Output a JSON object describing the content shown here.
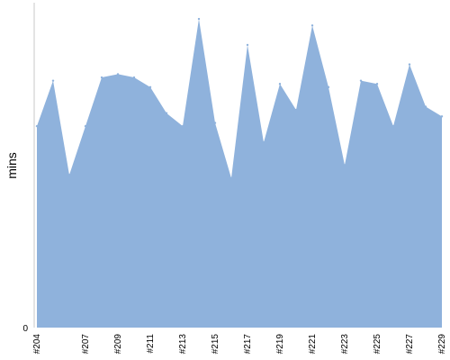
{
  "chart_data": {
    "type": "area",
    "title": "",
    "xlabel": "",
    "ylabel": "mins",
    "y_ticks": [
      "0"
    ],
    "ylim": [
      0,
      100
    ],
    "grid": false,
    "fill_color": "#8fb2dc",
    "axis_color": "#c8c8c8",
    "x_labels_shown": [
      "#204",
      "#207",
      "#209",
      "#211",
      "#213",
      "#215",
      "#217",
      "#219",
      "#221",
      "#223",
      "#225",
      "#227",
      "#229"
    ],
    "points": [
      {
        "x": "#204",
        "y": 62
      },
      {
        "x": "#205",
        "y": 76
      },
      {
        "x": "#206",
        "y": 47
      },
      {
        "x": "#207",
        "y": 62
      },
      {
        "x": "#208",
        "y": 77
      },
      {
        "x": "#209",
        "y": 78
      },
      {
        "x": "#210",
        "y": 77
      },
      {
        "x": "#211",
        "y": 74
      },
      {
        "x": "#212",
        "y": 66
      },
      {
        "x": "#213",
        "y": 62
      },
      {
        "x": "#214",
        "y": 95
      },
      {
        "x": "#215",
        "y": 63
      },
      {
        "x": "#216",
        "y": 46
      },
      {
        "x": "#217",
        "y": 87
      },
      {
        "x": "#218",
        "y": 57
      },
      {
        "x": "#219",
        "y": 75
      },
      {
        "x": "#220",
        "y": 67
      },
      {
        "x": "#221",
        "y": 93
      },
      {
        "x": "#222",
        "y": 74
      },
      {
        "x": "#223",
        "y": 50
      },
      {
        "x": "#224",
        "y": 76
      },
      {
        "x": "#225",
        "y": 75
      },
      {
        "x": "#226",
        "y": 62
      },
      {
        "x": "#227",
        "y": 81
      },
      {
        "x": "#228",
        "y": 68
      },
      {
        "x": "#229",
        "y": 65
      }
    ]
  }
}
